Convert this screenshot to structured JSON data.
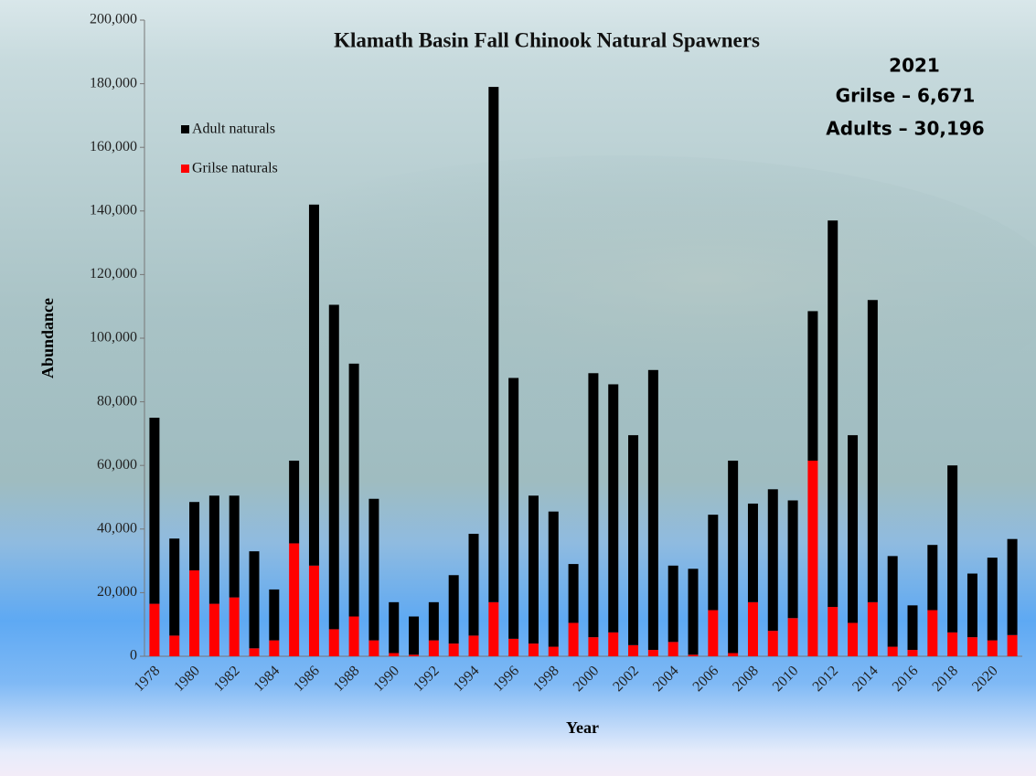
{
  "chart_data": {
    "type": "stacked_bar",
    "title": "Klamath Basin Fall Chinook Natural Spawners",
    "annotation": [
      "2021",
      "Grilse – 6,671",
      "Adults – 30,196"
    ],
    "x_label": "Year",
    "y_label": "Abundance",
    "categories": [
      "1978",
      null,
      "1980",
      null,
      "1982",
      null,
      "1984",
      null,
      "1986",
      null,
      "1988",
      null,
      "1990",
      null,
      "1992",
      null,
      "1994",
      null,
      "1996",
      null,
      "1998",
      null,
      "2000",
      null,
      "2002",
      null,
      "2004",
      null,
      "2006",
      null,
      "2008",
      null,
      "2010",
      null,
      "2012",
      null,
      "2014",
      null,
      "2016",
      null,
      "2018",
      null,
      "2020",
      null
    ],
    "series": [
      {
        "name": "Grilse naturals",
        "color": "#ff0000",
        "values": [
          16500,
          6500,
          27000,
          16500,
          18500,
          2500,
          5000,
          35500,
          28500,
          8500,
          12500,
          5000,
          1000,
          500,
          5000,
          4000,
          6500,
          17000,
          5500,
          4000,
          3000,
          10500,
          6000,
          7500,
          3500,
          2000,
          4500,
          500,
          14500,
          1000,
          17000,
          8000,
          12000,
          61500,
          15500,
          10500,
          17000,
          3000,
          2000,
          14500,
          7500,
          6000,
          5000,
          6671
        ]
      },
      {
        "name": "Adult naturals",
        "color": "#000000",
        "values": [
          58500,
          30500,
          21500,
          34000,
          32000,
          30500,
          16000,
          26000,
          113500,
          102000,
          79500,
          44500,
          16000,
          12000,
          12000,
          21500,
          32000,
          162000,
          82000,
          46500,
          42500,
          18500,
          83000,
          78000,
          66000,
          88000,
          24000,
          27000,
          30000,
          60500,
          31000,
          44500,
          37000,
          47000,
          121500,
          59000,
          95000,
          28500,
          14000,
          20500,
          52500,
          20000,
          26000,
          30196
        ]
      }
    ],
    "ylim": [
      0,
      200000
    ],
    "yticks": [
      0,
      {
        "value": 20000,
        "label": "20,000"
      },
      {
        "value": 40000,
        "label": "40,000"
      },
      {
        "value": 60000,
        "label": "60,000"
      },
      {
        "value": 80000,
        "label": "80,000"
      },
      {
        "value": 100000,
        "label": "100,000"
      },
      {
        "value": 120000,
        "label": "120,000"
      },
      {
        "value": 140000,
        "label": "140,000"
      },
      {
        "value": 160000,
        "label": "160,000"
      },
      {
        "value": 180000,
        "label": "180,000"
      },
      {
        "value": 200000,
        "label": "200,000"
      }
    ],
    "grid": false,
    "legend": "upper left"
  }
}
